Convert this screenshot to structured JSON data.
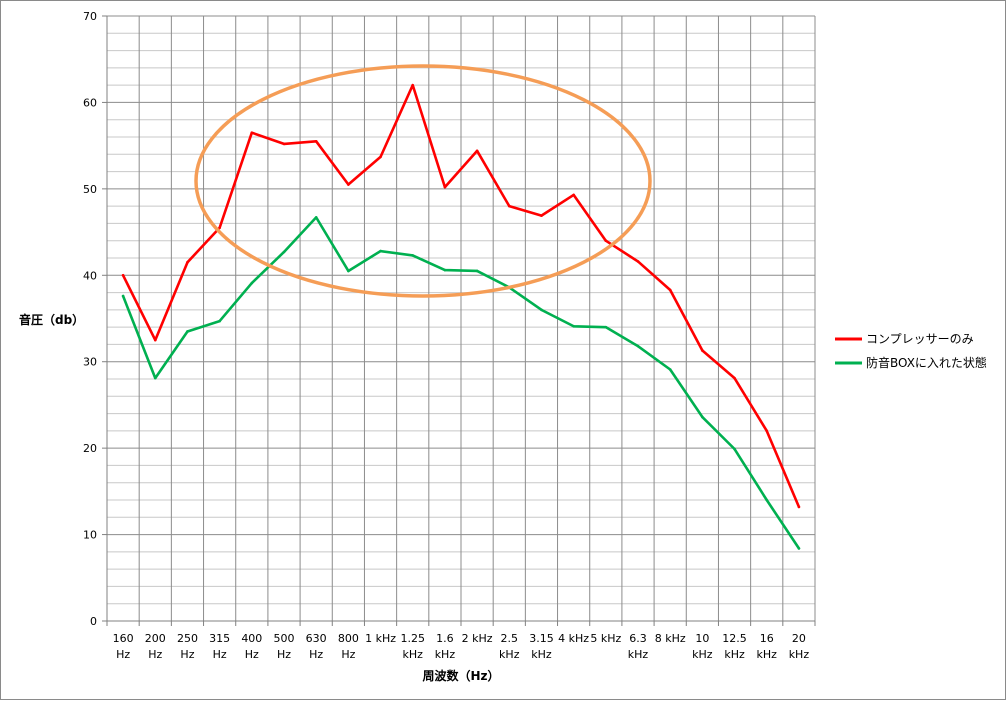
{
  "chart_data": {
    "type": "line",
    "title": "",
    "xlabel": "周波数（Hz）",
    "ylabel": "音圧（db）",
    "ylim": [
      0,
      70
    ],
    "y_ticks": [
      0,
      10,
      20,
      30,
      40,
      50,
      60,
      70
    ],
    "grid": true,
    "legend_position": "right",
    "categories": [
      [
        "160",
        "Hz"
      ],
      [
        "200",
        "Hz"
      ],
      [
        "250",
        "Hz"
      ],
      [
        "315",
        "Hz"
      ],
      [
        "400",
        "Hz"
      ],
      [
        "500",
        "Hz"
      ],
      [
        "630",
        "Hz"
      ],
      [
        "800",
        "Hz"
      ],
      [
        "1 kHz"
      ],
      [
        "1.25",
        "kHz"
      ],
      [
        "1.6",
        "kHz"
      ],
      [
        "2 kHz"
      ],
      [
        "2.5",
        "kHz"
      ],
      [
        "3.15",
        "kHz"
      ],
      [
        "4 kHz"
      ],
      [
        "5 kHz"
      ],
      [
        "6.3",
        "kHz"
      ],
      [
        "8 kHz"
      ],
      [
        "10",
        "kHz"
      ],
      [
        "12.5",
        "kHz"
      ],
      [
        "16",
        "kHz"
      ],
      [
        "20",
        "kHz"
      ]
    ],
    "series": [
      {
        "name": "コンプレッサーのみ",
        "color": "#ff0000",
        "values": [
          40.0,
          32.5,
          41.5,
          45.5,
          56.5,
          55.2,
          55.5,
          50.5,
          53.7,
          62.0,
          50.2,
          54.4,
          48.0,
          46.9,
          49.3,
          44.0,
          41.6,
          38.3,
          31.3,
          28.1,
          22.0,
          13.2
        ]
      },
      {
        "name": "防音BOXに入れた状態",
        "color": "#00b050",
        "values": [
          37.6,
          28.1,
          33.5,
          34.7,
          39.1,
          42.7,
          46.7,
          40.5,
          42.8,
          42.3,
          40.6,
          40.5,
          38.6,
          36.0,
          34.1,
          34.0,
          31.8,
          29.1,
          23.6,
          19.9,
          14.0,
          8.4
        ]
      }
    ],
    "annotation": {
      "shape": "ellipse",
      "color": "#f59d56"
    }
  }
}
